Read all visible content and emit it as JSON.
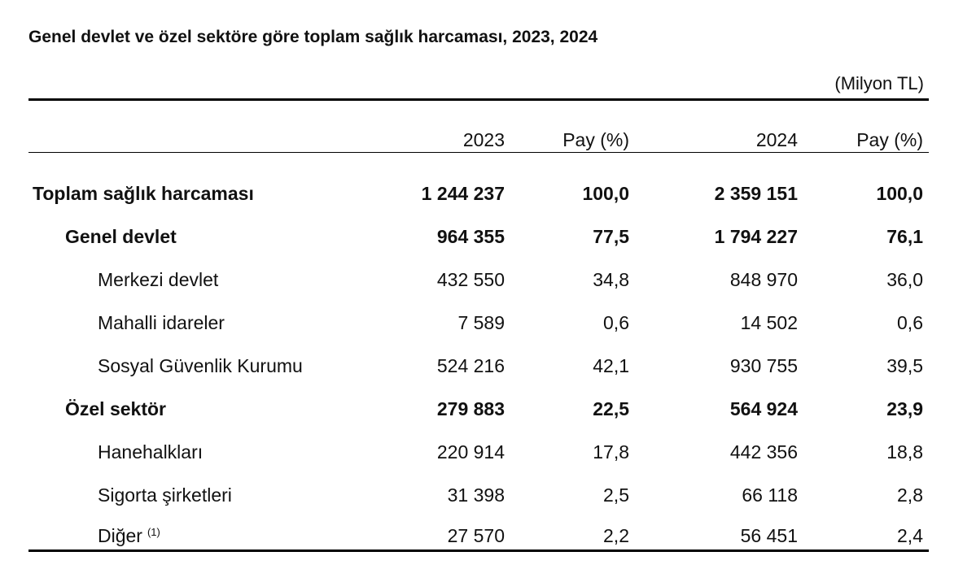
{
  "header": {
    "title": "Genel devlet ve özel sektöre göre toplam sağlık harcaması, 2023, 2024",
    "unit": "(Milyon TL)"
  },
  "table": {
    "columns": [
      "2023",
      "Pay (%)",
      "2024",
      "Pay (%)"
    ],
    "rows": [
      {
        "label": "Toplam sağlık harcaması",
        "cells": [
          "1 244 237",
          "100,0",
          "2 359 151",
          "100,0"
        ]
      },
      {
        "label": "Genel devlet",
        "cells": [
          "964 355",
          "77,5",
          "1 794 227",
          "76,1"
        ]
      },
      {
        "label": "Merkezi devlet",
        "cells": [
          "432 550",
          "34,8",
          "848 970",
          "36,0"
        ]
      },
      {
        "label": "Mahalli idareler",
        "cells": [
          "7 589",
          "0,6",
          "14 502",
          "0,6"
        ]
      },
      {
        "label": "Sosyal Güvenlik Kurumu",
        "cells": [
          "524 216",
          "42,1",
          "930 755",
          "39,5"
        ]
      },
      {
        "label": "Özel sektör",
        "cells": [
          "279 883",
          "22,5",
          "564 924",
          "23,9"
        ]
      },
      {
        "label": "Hanehalkları",
        "cells": [
          "220 914",
          "17,8",
          "442 356",
          "18,8"
        ]
      },
      {
        "label": "Sigorta şirketleri",
        "cells": [
          "31 398",
          "2,5",
          "66 118",
          "2,8"
        ]
      },
      {
        "label": "Diğer",
        "note": "(1)",
        "cells": [
          "27 570",
          "2,2",
          "56 451",
          "2,4"
        ]
      }
    ]
  }
}
